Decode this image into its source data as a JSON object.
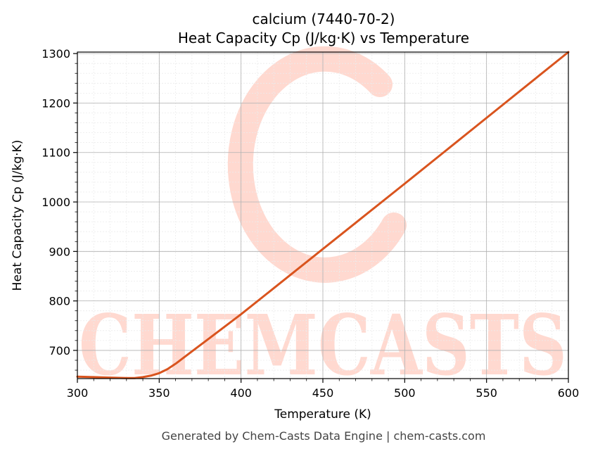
{
  "chart_data": {
    "type": "line",
    "title": "calcium (7440-70-2)",
    "subtitle": "Heat Capacity Cp (J/kg·K) vs Temperature",
    "xlabel": "Temperature (K)",
    "ylabel": "Heat Capacity Cp (J/kg·K)",
    "xlim": [
      300,
      600
    ],
    "ylim": [
      643,
      1303
    ],
    "xticks": [
      300,
      350,
      400,
      450,
      500,
      550,
      600
    ],
    "yticks": [
      700,
      800,
      900,
      1000,
      1100,
      1200,
      1300
    ],
    "grid": true,
    "series": [
      {
        "color": "#d9541e",
        "x": [
          300,
          310,
          320,
          330,
          335,
          340,
          345,
          350,
          355,
          360,
          370,
          380,
          400,
          450,
          500,
          550,
          600
        ],
        "y": [
          647,
          646,
          645,
          644,
          644,
          646,
          649,
          654,
          662,
          673,
          698,
          723,
          773,
          905,
          1037,
          1170,
          1303
        ]
      }
    ]
  },
  "watermark": {
    "text": "CHEMCASTS",
    "color": "#ffd9d0"
  },
  "footer": "Generated by Chem-Casts Data Engine | chem-casts.com"
}
